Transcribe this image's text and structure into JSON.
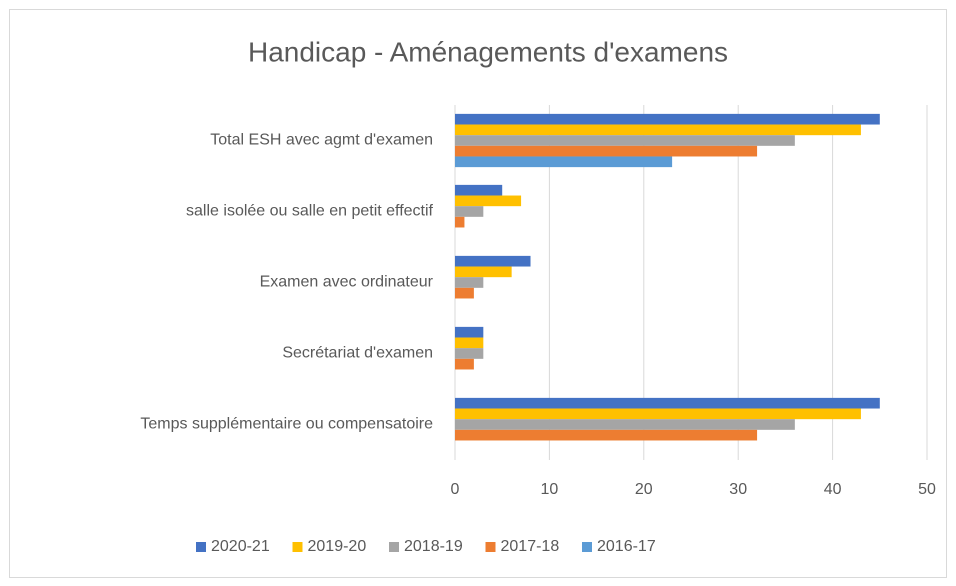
{
  "chart_data": {
    "type": "hbar",
    "title": "Handicap - Aménagements d'examens",
    "categories": [
      "Total  ESH avec agmt d'examen",
      "salle isolée ou  salle en petit effectif",
      "Examen avec ordinateur",
      "Secrétariat d'examen",
      "Temps supplémentaire ou compensatoire"
    ],
    "series": [
      {
        "name": "2020-21",
        "color": "#4472c4",
        "values": [
          45,
          5,
          8,
          3,
          45
        ]
      },
      {
        "name": "2019-20",
        "color": "#ffc000",
        "values": [
          43,
          7,
          6,
          3,
          43
        ]
      },
      {
        "name": "2018-19",
        "color": "#a5a5a5",
        "values": [
          36,
          3,
          3,
          3,
          36
        ]
      },
      {
        "name": "2017-18",
        "color": "#ed7d31",
        "values": [
          32,
          1,
          2,
          2,
          32
        ]
      },
      {
        "name": "2016-17",
        "color": "#5b9bd5",
        "values": [
          23,
          null,
          null,
          null,
          null
        ]
      }
    ],
    "xlim": [
      0,
      50
    ],
    "xticks": [
      0,
      10,
      20,
      30,
      40,
      50
    ],
    "grid": true,
    "legend": "bottom"
  }
}
